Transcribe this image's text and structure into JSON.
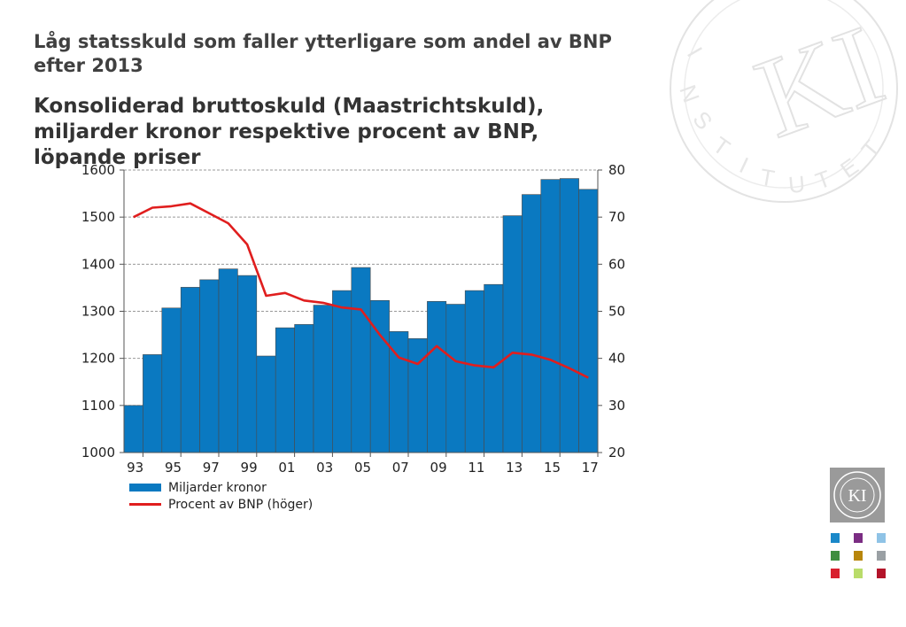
{
  "title": "Låg statsskuld som faller ytterligare som andel av BNP efter 2013",
  "subtitle": "Konsoliderad bruttoskuld (Maastrichtskuld), miljarder kronor respektive procent av BNP, löpande priser",
  "colors": {
    "bar": "#0a79c1",
    "line": "#e01e1e",
    "grid": "#999999"
  },
  "legend": {
    "bar_label": "Miljarder kronor",
    "line_label": "Procent av BNP (höger)"
  },
  "logo": {
    "text": "KI",
    "ring": "KONJUNKTUR INSTITUTET"
  },
  "chart_data": {
    "type": "bar",
    "categories": [
      "93",
      "94",
      "95",
      "96",
      "97",
      "98",
      "99",
      "00",
      "01",
      "02",
      "03",
      "04",
      "05",
      "06",
      "07",
      "08",
      "09",
      "10",
      "11",
      "12",
      "13",
      "14",
      "15",
      "16",
      "17"
    ],
    "x_tick_labels": [
      "93",
      "95",
      "97",
      "99",
      "01",
      "03",
      "05",
      "07",
      "09",
      "11",
      "13",
      "15",
      "17"
    ],
    "series": [
      {
        "name": "Miljarder kronor",
        "type": "bar",
        "axis": "left",
        "values": [
          1100,
          1208,
          1307,
          1351,
          1367,
          1390,
          1376,
          1205,
          1265,
          1272,
          1313,
          1344,
          1393,
          1323,
          1257,
          1242,
          1321,
          1315,
          1344,
          1357,
          1503,
          1548,
          1580,
          1582,
          1559
        ]
      },
      {
        "name": "Procent av BNP (höger)",
        "type": "line",
        "axis": "right",
        "values": [
          70.0,
          72.0,
          72.3,
          72.9,
          70.8,
          68.7,
          64.2,
          53.3,
          53.9,
          52.3,
          51.8,
          50.8,
          50.4,
          45.0,
          40.2,
          38.8,
          42.6,
          39.4,
          38.5,
          38.1,
          41.2,
          40.8,
          39.7,
          37.9,
          35.9
        ]
      }
    ],
    "ylim_left": [
      1000,
      1600
    ],
    "yticks_left": [
      1000,
      1100,
      1200,
      1300,
      1400,
      1500,
      1600
    ],
    "ylim_right": [
      20,
      80
    ],
    "yticks_right": [
      20,
      30,
      40,
      50,
      60,
      70,
      80
    ],
    "grid": true,
    "legend_position": "bottom-left"
  }
}
